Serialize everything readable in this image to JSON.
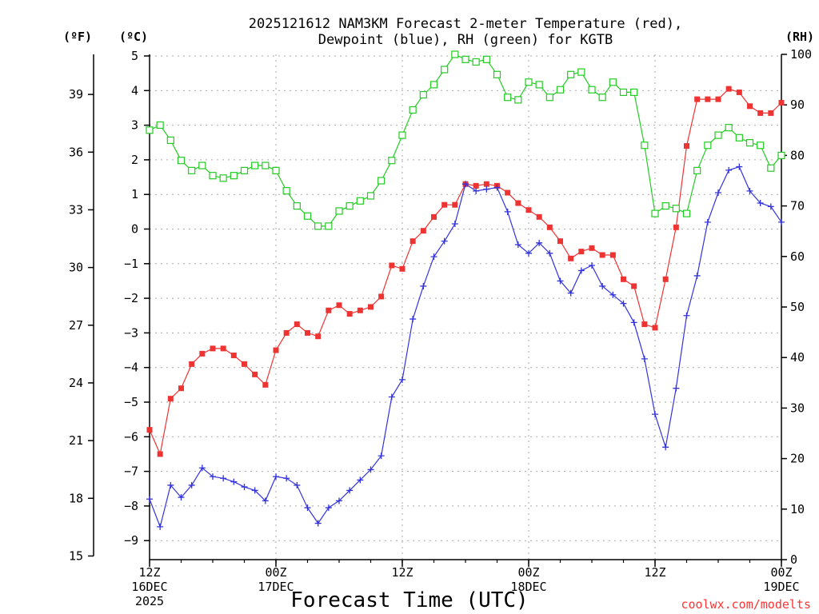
{
  "chart_data": {
    "type": "line",
    "title_line1": "2025121612 NAM3KM Forecast 2-meter Temperature (red),",
    "title_line2": "Dewpoint (blue), RH (green) for KGTB",
    "xlabel": "Forecast Time (UTC)",
    "watermark": "coolwx.com/modelts",
    "units": {
      "fahrenheit": "(ºF)",
      "celsius": "(ºC)",
      "rh": "(RH)"
    },
    "x_hours_from_start": [
      0,
      1,
      2,
      3,
      4,
      5,
      6,
      7,
      8,
      9,
      10,
      11,
      12,
      13,
      14,
      15,
      16,
      17,
      18,
      19,
      20,
      21,
      22,
      23,
      24,
      25,
      26,
      27,
      28,
      29,
      30,
      31,
      32,
      33,
      34,
      35,
      36,
      37,
      38,
      39,
      40,
      41,
      42,
      43,
      44,
      45,
      46,
      47,
      48,
      49,
      50,
      51,
      52,
      53,
      54,
      55,
      56,
      57,
      58,
      59,
      60
    ],
    "x_range_hours": [
      0,
      60
    ],
    "x_ticks": [
      {
        "hour": 0,
        "lines": [
          "12Z",
          "16DEC",
          "2025"
        ]
      },
      {
        "hour": 12,
        "lines": [
          "00Z",
          "17DEC"
        ]
      },
      {
        "hour": 24,
        "lines": [
          "12Z"
        ]
      },
      {
        "hour": 36,
        "lines": [
          "00Z",
          "18DEC"
        ]
      },
      {
        "hour": 48,
        "lines": [
          "12Z"
        ]
      },
      {
        "hour": 60,
        "lines": [
          "00Z",
          "19DEC"
        ]
      }
    ],
    "y_celsius": {
      "range": [
        -9.5,
        5
      ],
      "ticks": [
        -9,
        -8,
        -7,
        -6,
        -5,
        -4,
        -3,
        -2,
        -1,
        0,
        1,
        2,
        3,
        4,
        5
      ],
      "tick_labels": [
        "−9",
        "−8",
        "−7",
        "−6",
        "−5",
        "−4",
        "−3",
        "−2",
        "−1",
        "0",
        "1",
        "2",
        "3",
        "4",
        "5"
      ]
    },
    "y_fahrenheit": {
      "ticks": [
        15,
        18,
        21,
        24,
        27,
        30,
        33,
        36,
        39
      ],
      "tick_labels": [
        "15",
        "18",
        "21",
        "24",
        "27",
        "30",
        "33",
        "36",
        "39"
      ]
    },
    "y_rh": {
      "range": [
        0,
        100
      ],
      "ticks": [
        0,
        10,
        20,
        30,
        40,
        50,
        60,
        70,
        80,
        90,
        100
      ],
      "tick_labels": [
        "0",
        "10",
        "20",
        "30",
        "40",
        "50",
        "60",
        "70",
        "80",
        "90",
        "100"
      ]
    },
    "series": [
      {
        "name": "Temperature",
        "units": "C",
        "color": "#ee3333",
        "values": [
          -5.8,
          -6.5,
          -4.9,
          -4.6,
          -3.9,
          -3.6,
          -3.45,
          -3.45,
          -3.65,
          -3.9,
          -4.2,
          -4.5,
          -3.5,
          -3.0,
          -2.75,
          -3.0,
          -3.1,
          -2.35,
          -2.2,
          -2.45,
          -2.35,
          -2.25,
          -1.95,
          -1.05,
          -1.15,
          -0.35,
          -0.05,
          0.35,
          0.7,
          0.7,
          1.3,
          1.25,
          1.3,
          1.25,
          1.05,
          0.75,
          0.55,
          0.35,
          0.05,
          -0.35,
          -0.85,
          -0.65,
          -0.55,
          -0.75,
          -0.75,
          -1.45,
          -1.65,
          -2.75,
          -2.85,
          -1.45,
          0.05,
          2.4,
          3.75,
          3.75,
          3.75,
          4.05,
          3.95,
          3.55,
          3.35,
          3.35,
          3.65
        ]
      },
      {
        "name": "Dewpoint",
        "units": "C",
        "color": "#3333dd",
        "values": [
          -7.8,
          -8.6,
          -7.4,
          -7.75,
          -7.4,
          -6.9,
          -7.15,
          -7.2,
          -7.3,
          -7.45,
          -7.55,
          -7.85,
          -7.15,
          -7.2,
          -7.4,
          -8.05,
          -8.5,
          -8.05,
          -7.85,
          -7.55,
          -7.25,
          -6.95,
          -6.55,
          -4.85,
          -4.35,
          -2.6,
          -1.65,
          -0.8,
          -0.35,
          0.15,
          1.3,
          1.1,
          1.15,
          1.2,
          0.5,
          -0.45,
          -0.7,
          -0.4,
          -0.7,
          -1.5,
          -1.85,
          -1.2,
          -1.05,
          -1.65,
          -1.9,
          -2.15,
          -2.7,
          -3.75,
          -5.35,
          -6.3,
          -4.6,
          -2.5,
          -1.35,
          0.2,
          1.05,
          1.7,
          1.8,
          1.1,
          0.75,
          0.65,
          0.2
        ]
      },
      {
        "name": "RH",
        "units": "%",
        "color": "#22cc22",
        "values": [
          85,
          86,
          83,
          79,
          77,
          78,
          76,
          75.5,
          76,
          77,
          78,
          78,
          77,
          73,
          70,
          68,
          66,
          66,
          69,
          70,
          71,
          72,
          75,
          79,
          84,
          89,
          92,
          94,
          97,
          100,
          99,
          98.5,
          99,
          96,
          91.5,
          91,
          94.5,
          94,
          91.5,
          93,
          96,
          96.5,
          93,
          91.5,
          94.5,
          92.5,
          92.5,
          82,
          68.5,
          70,
          69.5,
          68.5,
          77,
          82,
          84,
          85.5,
          83.5,
          82.5,
          82,
          77.5,
          80
        ]
      }
    ]
  }
}
